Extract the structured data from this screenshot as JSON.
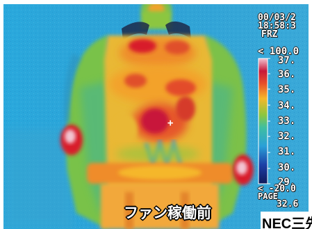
{
  "overlay": {
    "date": "00/03/2",
    "time": "18:58:3",
    "mode": "FRZ",
    "range_max": "< 100.0",
    "range_min": "< -20.0",
    "page_label": "PAGE",
    "page_value": "32.6"
  },
  "scale_labels": [
    "37.",
    "36.",
    "35.",
    "34.",
    "33.",
    "32.",
    "31.",
    "30.",
    "29."
  ],
  "crosshair": "+",
  "caption": "ファン稼働前",
  "logo": "NEC三先",
  "colors": {
    "background": "#1f9fd6",
    "hot": "#d81e2a",
    "warm": "#f3a22b",
    "mild": "#7fc14a",
    "cool": "#2f9fd8"
  }
}
